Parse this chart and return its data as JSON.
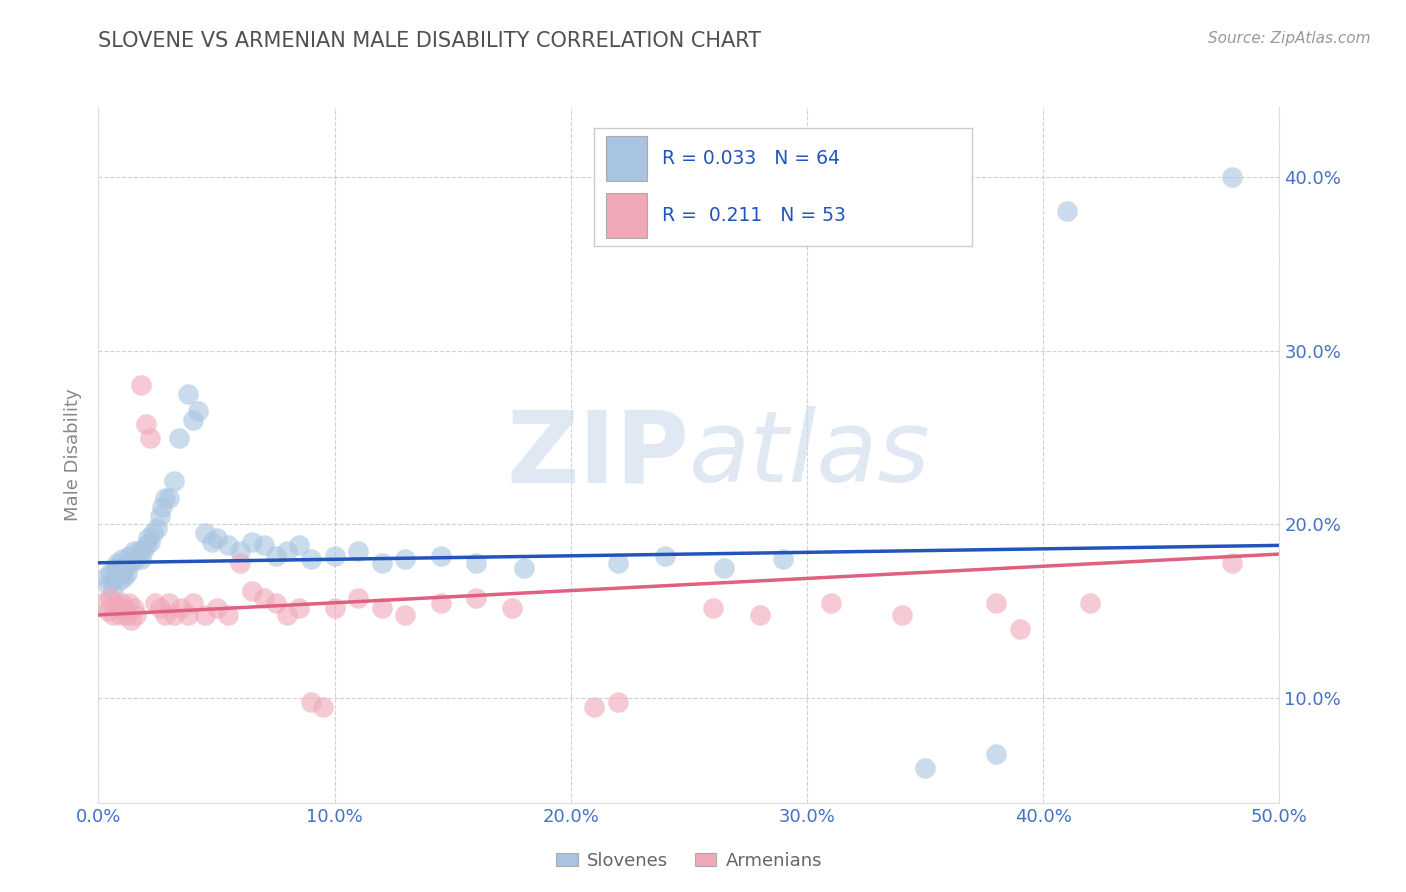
{
  "title": "SLOVENE VS ARMENIAN MALE DISABILITY CORRELATION CHART",
  "source": "Source: ZipAtlas.com",
  "ylabel": "Male Disability",
  "xlim": [
    0.0,
    0.5
  ],
  "ylim": [
    0.04,
    0.44
  ],
  "xticks": [
    0.0,
    0.1,
    0.2,
    0.3,
    0.4,
    0.5
  ],
  "yticks": [
    0.1,
    0.2,
    0.3,
    0.4
  ],
  "ytick_labels_right": [
    "10.0%",
    "20.0%",
    "30.0%",
    "40.0%"
  ],
  "xtick_labels": [
    "0.0%",
    "10.0%",
    "20.0%",
    "30.0%",
    "40.0%",
    "50.0%"
  ],
  "blue_color": "#a8c4e0",
  "pink_color": "#f0a8b8",
  "blue_line_color": "#2255bb",
  "pink_line_color": "#e06080",
  "blue_scatter": [
    [
      0.003,
      0.17
    ],
    [
      0.004,
      0.165
    ],
    [
      0.005,
      0.172
    ],
    [
      0.006,
      0.168
    ],
    [
      0.006,
      0.162
    ],
    [
      0.007,
      0.175
    ],
    [
      0.007,
      0.17
    ],
    [
      0.008,
      0.178
    ],
    [
      0.008,
      0.173
    ],
    [
      0.009,
      0.168
    ],
    [
      0.009,
      0.175
    ],
    [
      0.01,
      0.172
    ],
    [
      0.01,
      0.18
    ],
    [
      0.011,
      0.175
    ],
    [
      0.011,
      0.17
    ],
    [
      0.012,
      0.178
    ],
    [
      0.012,
      0.172
    ],
    [
      0.013,
      0.182
    ],
    [
      0.014,
      0.178
    ],
    [
      0.015,
      0.185
    ],
    [
      0.016,
      0.18
    ],
    [
      0.017,
      0.185
    ],
    [
      0.018,
      0.18
    ],
    [
      0.019,
      0.185
    ],
    [
      0.02,
      0.188
    ],
    [
      0.021,
      0.192
    ],
    [
      0.022,
      0.19
    ],
    [
      0.023,
      0.195
    ],
    [
      0.025,
      0.198
    ],
    [
      0.026,
      0.205
    ],
    [
      0.027,
      0.21
    ],
    [
      0.028,
      0.215
    ],
    [
      0.03,
      0.215
    ],
    [
      0.032,
      0.225
    ],
    [
      0.034,
      0.25
    ],
    [
      0.038,
      0.275
    ],
    [
      0.04,
      0.26
    ],
    [
      0.042,
      0.265
    ],
    [
      0.045,
      0.195
    ],
    [
      0.048,
      0.19
    ],
    [
      0.05,
      0.192
    ],
    [
      0.055,
      0.188
    ],
    [
      0.06,
      0.185
    ],
    [
      0.065,
      0.19
    ],
    [
      0.07,
      0.188
    ],
    [
      0.075,
      0.182
    ],
    [
      0.08,
      0.185
    ],
    [
      0.085,
      0.188
    ],
    [
      0.09,
      0.18
    ],
    [
      0.1,
      0.182
    ],
    [
      0.11,
      0.185
    ],
    [
      0.12,
      0.178
    ],
    [
      0.13,
      0.18
    ],
    [
      0.145,
      0.182
    ],
    [
      0.16,
      0.178
    ],
    [
      0.18,
      0.175
    ],
    [
      0.22,
      0.178
    ],
    [
      0.24,
      0.182
    ],
    [
      0.265,
      0.175
    ],
    [
      0.29,
      0.18
    ],
    [
      0.35,
      0.06
    ],
    [
      0.38,
      0.068
    ],
    [
      0.41,
      0.38
    ],
    [
      0.48,
      0.4
    ]
  ],
  "pink_scatter": [
    [
      0.002,
      0.155
    ],
    [
      0.004,
      0.15
    ],
    [
      0.005,
      0.158
    ],
    [
      0.006,
      0.148
    ],
    [
      0.007,
      0.155
    ],
    [
      0.008,
      0.152
    ],
    [
      0.009,
      0.148
    ],
    [
      0.01,
      0.155
    ],
    [
      0.011,
      0.152
    ],
    [
      0.012,
      0.148
    ],
    [
      0.013,
      0.155
    ],
    [
      0.014,
      0.145
    ],
    [
      0.015,
      0.152
    ],
    [
      0.016,
      0.148
    ],
    [
      0.018,
      0.28
    ],
    [
      0.02,
      0.258
    ],
    [
      0.022,
      0.25
    ],
    [
      0.024,
      0.155
    ],
    [
      0.026,
      0.152
    ],
    [
      0.028,
      0.148
    ],
    [
      0.03,
      0.155
    ],
    [
      0.032,
      0.148
    ],
    [
      0.035,
      0.152
    ],
    [
      0.038,
      0.148
    ],
    [
      0.04,
      0.155
    ],
    [
      0.045,
      0.148
    ],
    [
      0.05,
      0.152
    ],
    [
      0.055,
      0.148
    ],
    [
      0.06,
      0.178
    ],
    [
      0.065,
      0.162
    ],
    [
      0.07,
      0.158
    ],
    [
      0.075,
      0.155
    ],
    [
      0.08,
      0.148
    ],
    [
      0.085,
      0.152
    ],
    [
      0.09,
      0.098
    ],
    [
      0.095,
      0.095
    ],
    [
      0.1,
      0.152
    ],
    [
      0.11,
      0.158
    ],
    [
      0.12,
      0.152
    ],
    [
      0.13,
      0.148
    ],
    [
      0.145,
      0.155
    ],
    [
      0.16,
      0.158
    ],
    [
      0.175,
      0.152
    ],
    [
      0.21,
      0.095
    ],
    [
      0.22,
      0.098
    ],
    [
      0.26,
      0.152
    ],
    [
      0.28,
      0.148
    ],
    [
      0.31,
      0.155
    ],
    [
      0.34,
      0.148
    ],
    [
      0.38,
      0.155
    ],
    [
      0.39,
      0.14
    ],
    [
      0.42,
      0.155
    ],
    [
      0.48,
      0.178
    ]
  ],
  "blue_line_x": [
    0.0,
    0.5
  ],
  "blue_line_y": [
    0.178,
    0.188
  ],
  "pink_line_x": [
    0.0,
    0.5
  ],
  "pink_line_y": [
    0.148,
    0.183
  ],
  "watermark_zip": "ZIP",
  "watermark_atlas": "atlas",
  "background_color": "#ffffff",
  "grid_color": "#cccccc",
  "title_color": "#505050",
  "tick_color": "#4472c4"
}
